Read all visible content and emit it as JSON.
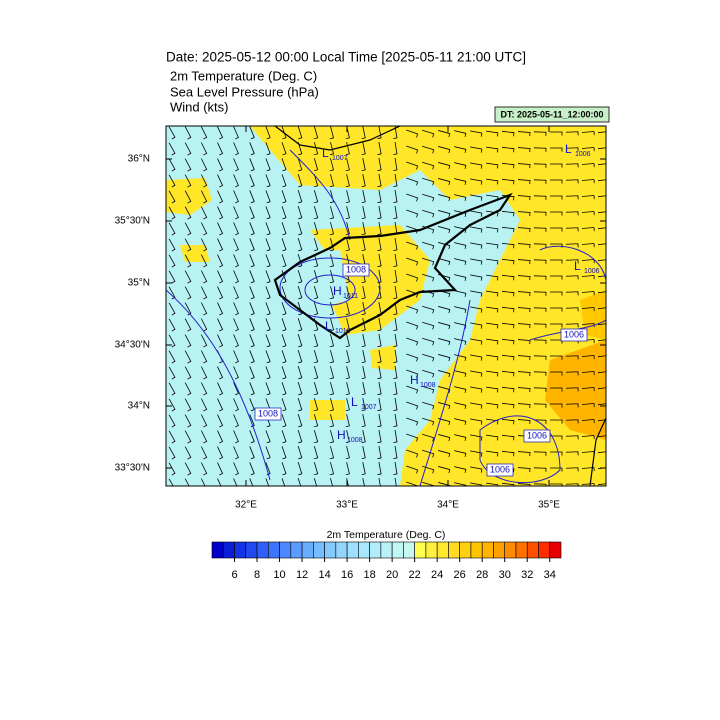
{
  "header": {
    "title": "Date: 2025-05-12  00:00 Local Time [2025-05-11  21:00 UTC]",
    "fields": [
      "2m Temperature (Deg. C)",
      "Sea Level Pressure   (hPa)",
      "Wind   (kts)"
    ],
    "valid_time": "DT: 2025-05-11_12:00:00"
  },
  "map": {
    "lon_ticks": [
      "32°E",
      "33°E",
      "34°E",
      "35°E"
    ],
    "lat_ticks": [
      "36°N",
      "35°30'N",
      "35°N",
      "34°30'N",
      "34°N",
      "33°30'N"
    ],
    "contour_labels": [
      {
        "symbol": "L",
        "value": "1007"
      },
      {
        "symbol": "L",
        "value": "1006"
      },
      {
        "value": "1008"
      },
      {
        "symbol": "H",
        "value": "1011"
      },
      {
        "symbol": "L",
        "value": "1010"
      },
      {
        "symbol": "L",
        "value": "1006"
      },
      {
        "value": "1006"
      },
      {
        "symbol": "H",
        "value": "1008"
      },
      {
        "symbol": "L",
        "value": "1007"
      },
      {
        "value": "1008"
      },
      {
        "symbol": "H",
        "value": "1008"
      },
      {
        "value": "1006"
      },
      {
        "value": "1006"
      }
    ]
  },
  "colorbar": {
    "title": "2m Temperature (Deg. C)",
    "ticks": [
      6,
      8,
      10,
      12,
      14,
      16,
      18,
      20,
      22,
      24,
      26,
      28,
      30,
      32,
      34
    ],
    "lim": [
      4,
      35
    ],
    "colors": [
      "#0000c8",
      "#0a1ed8",
      "#1432e6",
      "#2248f2",
      "#305ef8",
      "#3e74fc",
      "#4c88ff",
      "#5a9cff",
      "#68aeff",
      "#76bcff",
      "#84caff",
      "#92d6ff",
      "#9ee0ff",
      "#a8e8ff",
      "#b0eefc",
      "#b8f2f8",
      "#c0f6f4",
      "#c8f8f0",
      "#ffff50",
      "#fff040",
      "#ffe830",
      "#ffdc20",
      "#ffd010",
      "#ffc400",
      "#ffb400",
      "#ffa000",
      "#ff8c00",
      "#ff7000",
      "#ff5000",
      "#ff2c00",
      "#e80000"
    ]
  }
}
